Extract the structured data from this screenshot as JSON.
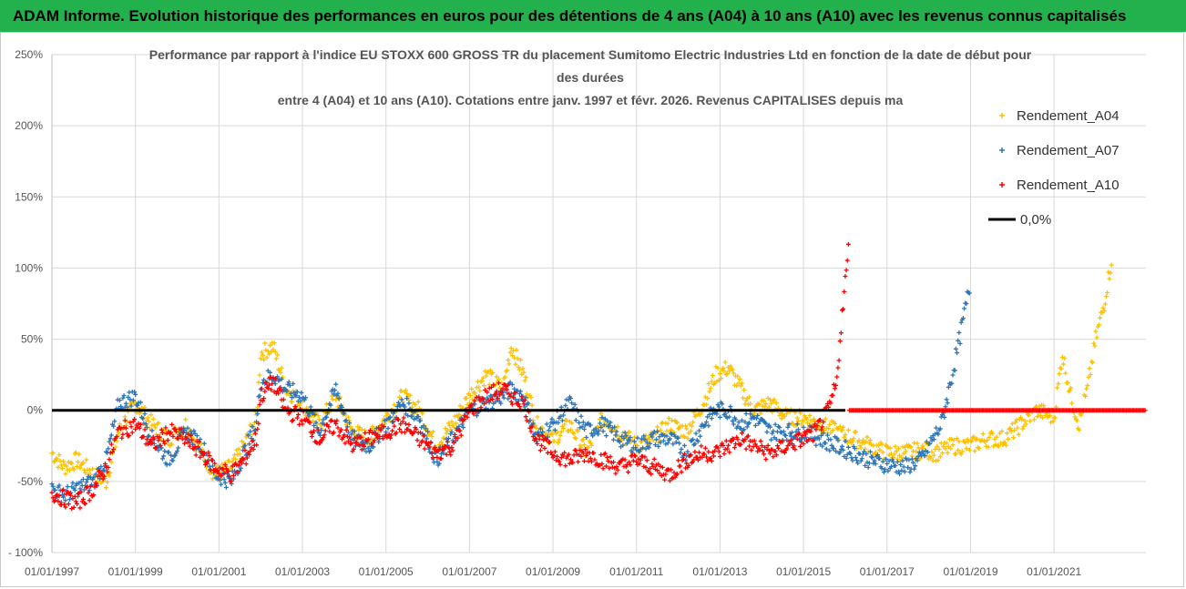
{
  "page": {
    "banner": "ADAM Informe. Evolution historique des performances en euros pour des détentions de 4 ans (A04) à 10 ans (A10) avec les revenus connus capitalisés"
  },
  "chart_data": {
    "type": "scatter",
    "title_lines": [
      "Performance par rapport à l'indice EU STOXX 600 GROSS TR  du placement Sumitomo Electric Industries Ltd en fonction de la date de début pour",
      "des durées",
      "entre 4 (A04) et 10 ans (A10).  Cotations entre janv. 1997 et févr. 2026. Revenus CAPITALISES depuis ma"
    ],
    "xlim": [
      1997.0,
      2023.2
    ],
    "ylim": [
      -100,
      250
    ],
    "y_ticks": [
      250,
      200,
      150,
      100,
      50,
      0,
      -50,
      -100
    ],
    "y_tick_labels": [
      "250%",
      "200%",
      "150%",
      "100%",
      "50%",
      "0%",
      "-50%",
      "- 100%"
    ],
    "x_ticks": [
      1997,
      1999,
      2001,
      2003,
      2005,
      2007,
      2009,
      2011,
      2013,
      2015,
      2017,
      2019,
      2021
    ],
    "x_tick_labels": [
      "01/01/1997",
      "01/01/1999",
      "01/01/2001",
      "01/01/2003",
      "01/01/2005",
      "01/01/2007",
      "01/01/2009",
      "01/01/2011",
      "01/01/2013",
      "01/01/2015",
      "01/01/2017",
      "01/01/2019",
      "01/01/2021"
    ],
    "series": [
      {
        "name": "Rendement_A04",
        "color": "#ffc000",
        "x": [
          1997.0,
          1997.3,
          1997.6,
          1998.0,
          1998.3,
          1998.6,
          1999.0,
          1999.4,
          1999.8,
          2000.2,
          2000.6,
          2000.9,
          2001.3,
          2001.6,
          2001.9,
          2002.0,
          2002.3,
          2002.6,
          2003.0,
          2003.4,
          2003.8,
          2004.2,
          2004.6,
          2005.0,
          2005.4,
          2005.8,
          2006.2,
          2006.6,
          2007.0,
          2007.4,
          2007.8,
          2008.0,
          2008.3,
          2008.6,
          2009.0,
          2009.4,
          2009.8,
          2010.2,
          2010.6,
          2011.0,
          2011.4,
          2011.8,
          2012.2,
          2012.6,
          2012.9,
          2013.2,
          2013.5,
          2013.8,
          2014.2,
          2014.6,
          2015.0,
          2015.4,
          2015.8,
          2016.2,
          2016.6,
          2017.0,
          2017.4,
          2017.8,
          2018.2,
          2018.6,
          2019.0,
          2019.4,
          2019.8,
          2020.2,
          2020.6,
          2021.0,
          2021.2,
          2021.4,
          2021.6,
          2021.8,
          2022.0,
          2022.2,
          2022.4
        ],
        "y": [
          -30,
          -40,
          -35,
          -45,
          -50,
          -15,
          5,
          -10,
          -20,
          -10,
          -30,
          -45,
          -40,
          -25,
          -5,
          40,
          45,
          15,
          5,
          -10,
          10,
          -15,
          -20,
          -5,
          10,
          0,
          -25,
          -10,
          10,
          25,
          15,
          45,
          25,
          -10,
          -20,
          -10,
          -30,
          -5,
          -15,
          -25,
          -20,
          -10,
          -15,
          5,
          25,
          30,
          15,
          0,
          5,
          -5,
          -5,
          -10,
          -15,
          -20,
          -25,
          -30,
          -30,
          -28,
          -30,
          -25,
          -25,
          -20,
          -20,
          -10,
          0,
          -5,
          40,
          10,
          -10,
          15,
          50,
          75,
          110
        ]
      },
      {
        "name": "Rendement_A07",
        "color": "#2e75b6",
        "x": [
          1997.0,
          1997.3,
          1997.6,
          1998.0,
          1998.3,
          1998.6,
          1999.0,
          1999.4,
          1999.8,
          2000.2,
          2000.6,
          2000.9,
          2001.3,
          2001.6,
          2001.9,
          2002.0,
          2002.3,
          2002.6,
          2003.0,
          2003.4,
          2003.8,
          2004.2,
          2004.6,
          2005.0,
          2005.4,
          2005.8,
          2006.2,
          2006.6,
          2007.0,
          2007.4,
          2007.8,
          2008.0,
          2008.3,
          2008.6,
          2009.0,
          2009.4,
          2009.8,
          2010.2,
          2010.6,
          2011.0,
          2011.4,
          2011.8,
          2012.2,
          2012.6,
          2012.9,
          2013.2,
          2013.5,
          2013.8,
          2014.2,
          2014.6,
          2015.0,
          2015.4,
          2015.8,
          2016.2,
          2016.6,
          2017.0,
          2017.4,
          2017.8,
          2018.0,
          2018.3,
          2018.6,
          2018.8,
          2019.0
        ],
        "y": [
          -55,
          -60,
          -55,
          -50,
          -35,
          5,
          10,
          -20,
          -35,
          -15,
          -25,
          -45,
          -50,
          -30,
          -10,
          20,
          25,
          15,
          10,
          -15,
          15,
          -20,
          -25,
          -10,
          5,
          -5,
          -35,
          -20,
          0,
          5,
          10,
          15,
          10,
          -20,
          -10,
          5,
          -15,
          -10,
          -20,
          -25,
          -20,
          -20,
          -30,
          -10,
          0,
          0,
          -10,
          -5,
          -15,
          -15,
          -15,
          -20,
          -25,
          -30,
          -35,
          -38,
          -40,
          -35,
          -25,
          -10,
          30,
          60,
          90
        ]
      },
      {
        "name": "Rendement_A10",
        "color": "#ff0000",
        "x": [
          1997.0,
          1997.3,
          1997.6,
          1998.0,
          1998.3,
          1998.6,
          1999.0,
          1999.4,
          1999.8,
          2000.2,
          2000.6,
          2000.9,
          2001.3,
          2001.6,
          2001.9,
          2002.0,
          2002.3,
          2002.6,
          2003.0,
          2003.4,
          2003.8,
          2004.2,
          2004.6,
          2005.0,
          2005.4,
          2005.8,
          2006.2,
          2006.6,
          2007.0,
          2007.4,
          2007.8,
          2008.0,
          2008.3,
          2008.6,
          2009.0,
          2009.4,
          2009.8,
          2010.2,
          2010.6,
          2011.0,
          2011.4,
          2011.8,
          2012.2,
          2012.6,
          2012.9,
          2013.2,
          2013.5,
          2013.8,
          2014.2,
          2014.6,
          2015.0,
          2015.3,
          2015.6,
          2015.8,
          2015.9,
          2016.1
        ],
        "y": [
          -58,
          -62,
          -65,
          -55,
          -40,
          -15,
          -10,
          -25,
          -15,
          -20,
          -30,
          -40,
          -45,
          -35,
          -20,
          10,
          20,
          0,
          -5,
          -20,
          -10,
          -25,
          -20,
          -15,
          -10,
          -20,
          -30,
          -25,
          0,
          10,
          15,
          10,
          5,
          -20,
          -30,
          -35,
          -30,
          -35,
          -40,
          -35,
          -40,
          -45,
          -35,
          -30,
          -30,
          -25,
          -20,
          -25,
          -30,
          -25,
          -20,
          -15,
          0,
          20,
          60,
          120
        ]
      },
      {
        "name": "0,0%",
        "color": "#000000",
        "x": [
          1997.0,
          2016.0
        ],
        "y": [
          0,
          0
        ]
      }
    ],
    "zero_markers_red": {
      "x_start": 2016.1,
      "x_end": 2023.2,
      "y": 0
    }
  }
}
